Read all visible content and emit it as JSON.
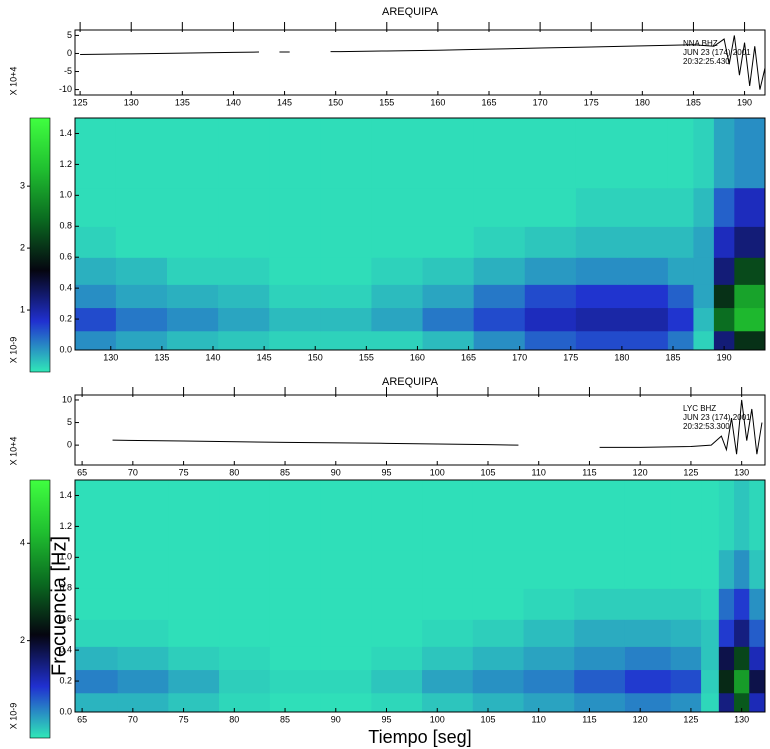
{
  "chart_data": [
    {
      "type": "line",
      "title": "AREQUIPA",
      "ylabel": "X 10+4",
      "color": "#000000",
      "annotation": [
        "NNA BHZ",
        "JUN 23 (174) 2001",
        "20:32:25.430"
      ],
      "x": [
        125,
        130,
        135,
        140,
        142.5,
        143.5,
        144.5,
        145.5,
        147,
        149.5,
        150.5,
        155,
        160,
        165,
        170,
        175,
        180,
        185,
        187,
        188,
        188.5,
        189,
        189.5,
        190,
        190.5,
        191,
        191.5,
        192
      ],
      "values": [
        -0.3,
        -0.1,
        0.1,
        0.3,
        0.4,
        null,
        0.4,
        0.4,
        null,
        0.5,
        0.5,
        0.7,
        0.9,
        1.2,
        1.5,
        1.8,
        2.1,
        2.4,
        2.0,
        4.0,
        -3,
        5,
        -6,
        3,
        -9,
        2,
        -10,
        -4
      ],
      "xlim": [
        124.5,
        192
      ],
      "ylim": [
        -11.5,
        6.5
      ],
      "xticks": [
        125,
        130,
        135,
        140,
        145,
        150,
        155,
        160,
        165,
        170,
        175,
        180,
        185,
        190
      ],
      "yticks": [
        5,
        0,
        -5,
        -10
      ]
    },
    {
      "type": "heatmap",
      "colorbar_label": "X 10-9",
      "colorscale": [
        "#30e8b8",
        "#2030d0",
        "#050510",
        "#0a6a20",
        "#20c030",
        "#40ff40"
      ],
      "x": [
        128,
        133,
        138,
        143,
        148,
        153,
        158,
        163,
        168,
        173,
        178,
        183,
        186,
        188,
        190,
        192
      ],
      "y": [
        0.05,
        0.2,
        0.35,
        0.5,
        0.7,
        0.9,
        1.2
      ],
      "z": [
        [
          0.4,
          0.3,
          0.2,
          0.15,
          0.1,
          0.1,
          0.1,
          0.2,
          0.4,
          0.6,
          0.7,
          0.7,
          0.5,
          0.1,
          1.2,
          2.0
        ],
        [
          0.7,
          0.5,
          0.4,
          0.3,
          0.2,
          0.2,
          0.3,
          0.5,
          0.7,
          0.9,
          1.0,
          1.0,
          0.8,
          0.2,
          2.5,
          3.2
        ],
        [
          0.4,
          0.3,
          0.25,
          0.2,
          0.1,
          0.1,
          0.2,
          0.3,
          0.5,
          0.7,
          0.8,
          0.8,
          0.6,
          0.3,
          2.0,
          3.0
        ],
        [
          0.25,
          0.2,
          0.1,
          0.1,
          0.05,
          0.05,
          0.1,
          0.15,
          0.25,
          0.35,
          0.4,
          0.4,
          0.3,
          0.3,
          1.2,
          2.2
        ],
        [
          0.1,
          0.05,
          0.05,
          0.05,
          0.05,
          0.05,
          0.05,
          0.05,
          0.1,
          0.15,
          0.2,
          0.2,
          0.2,
          0.3,
          0.9,
          1.2
        ],
        [
          0.05,
          0.05,
          0.05,
          0.05,
          0.05,
          0.05,
          0.05,
          0.05,
          0.05,
          0.05,
          0.1,
          0.1,
          0.1,
          0.2,
          0.6,
          0.9
        ],
        [
          0.05,
          0.05,
          0.05,
          0.05,
          0.05,
          0.05,
          0.05,
          0.05,
          0.05,
          0.05,
          0.05,
          0.05,
          0.05,
          0.1,
          0.3,
          0.4
        ]
      ],
      "xlim": [
        126.5,
        194
      ],
      "ylim": [
        0,
        1.5
      ],
      "clim": [
        0,
        4.1
      ],
      "xticks": [
        130,
        135,
        140,
        145,
        150,
        155,
        160,
        165,
        170,
        175,
        180,
        185,
        190
      ],
      "yticks": [
        {
          "value": 0,
          "label": "0.0"
        },
        0.2,
        0.4,
        0.6,
        0.8,
        {
          "value": 1,
          "label": "1.0"
        },
        1.2,
        1.4
      ],
      "cticks": [
        1,
        2,
        3
      ]
    },
    {
      "type": "line",
      "title": "AREQUIPA",
      "ylabel": "X 10+4",
      "color": "#000000",
      "annotation": [
        "LYC BHZ",
        "JUN 23 (174) 2001",
        "20:32:53.300"
      ],
      "x": [
        68,
        75,
        85,
        95,
        105,
        108,
        112,
        116,
        120,
        125,
        127,
        128,
        128.5,
        129,
        129.5,
        130,
        130.5,
        131,
        131.5,
        132
      ],
      "values": [
        1.1,
        0.9,
        0.6,
        0.4,
        0.1,
        0.0,
        null,
        -0.5,
        -0.5,
        -0.3,
        0,
        2,
        -1,
        6,
        -2,
        10,
        1,
        8,
        -2,
        5
      ],
      "xlim": [
        64.3,
        132.3
      ],
      "ylim": [
        -4.4,
        11.1
      ],
      "xticks": [
        65,
        70,
        75,
        80,
        85,
        90,
        95,
        100,
        105,
        110,
        115,
        120,
        125,
        130
      ],
      "yticks": [
        0,
        5,
        10
      ]
    },
    {
      "type": "heatmap",
      "colorbar_label": "X 10-9",
      "xlabel": "Tiempo [seg]",
      "ylabel": "Frecuencia [Hz]",
      "colorscale": [
        "#30e8b8",
        "#2030d0",
        "#050510",
        "#0a6a20",
        "#20c030",
        "#40ff40"
      ],
      "x": [
        66,
        71,
        76,
        81,
        86,
        91,
        96,
        101,
        106,
        111,
        116,
        121,
        125,
        127,
        128.5,
        130,
        131.5
      ],
      "y": [
        0.05,
        0.2,
        0.35,
        0.5,
        0.7,
        0.9,
        1.2
      ],
      "z": [
        [
          0.3,
          0.3,
          0.2,
          0.1,
          0.05,
          0.05,
          0.1,
          0.2,
          0.3,
          0.4,
          0.5,
          0.6,
          0.5,
          0.1,
          1.5,
          3.0,
          1.2
        ],
        [
          0.6,
          0.5,
          0.35,
          0.15,
          0.1,
          0.1,
          0.2,
          0.4,
          0.5,
          0.6,
          0.8,
          1.0,
          0.9,
          0.15,
          2.5,
          3.8,
          1.8
        ],
        [
          0.3,
          0.25,
          0.15,
          0.1,
          0.05,
          0.05,
          0.1,
          0.2,
          0.3,
          0.4,
          0.5,
          0.6,
          0.5,
          0.2,
          1.8,
          2.8,
          1.2
        ],
        [
          0.1,
          0.1,
          0.05,
          0.05,
          0.05,
          0.05,
          0.05,
          0.1,
          0.15,
          0.25,
          0.35,
          0.35,
          0.3,
          0.2,
          1.0,
          1.5,
          0.8
        ],
        [
          0.05,
          0.05,
          0.05,
          0.05,
          0.05,
          0.05,
          0.05,
          0.05,
          0.05,
          0.1,
          0.15,
          0.15,
          0.15,
          0.1,
          0.7,
          1.0,
          0.5
        ],
        [
          0.05,
          0.05,
          0.05,
          0.05,
          0.05,
          0.05,
          0.05,
          0.05,
          0.05,
          0.05,
          0.05,
          0.05,
          0.05,
          0.05,
          0.3,
          0.5,
          0.2
        ],
        [
          0.05,
          0.05,
          0.05,
          0.05,
          0.05,
          0.05,
          0.05,
          0.05,
          0.05,
          0.05,
          0.05,
          0.05,
          0.05,
          0.05,
          0.1,
          0.2,
          0.1
        ]
      ],
      "xlim": [
        64.3,
        132.3
      ],
      "ylim": [
        0,
        1.5
      ],
      "clim": [
        0,
        5.3
      ],
      "xticks": [
        65,
        70,
        75,
        80,
        85,
        90,
        95,
        100,
        105,
        110,
        115,
        120,
        125,
        130
      ],
      "yticks": [
        {
          "value": 0,
          "label": "0.0"
        },
        0.2,
        0.4,
        0.6,
        0.8,
        {
          "value": 1,
          "label": "1.0"
        },
        1.2,
        1.4
      ],
      "cticks": [
        2,
        4
      ]
    }
  ]
}
